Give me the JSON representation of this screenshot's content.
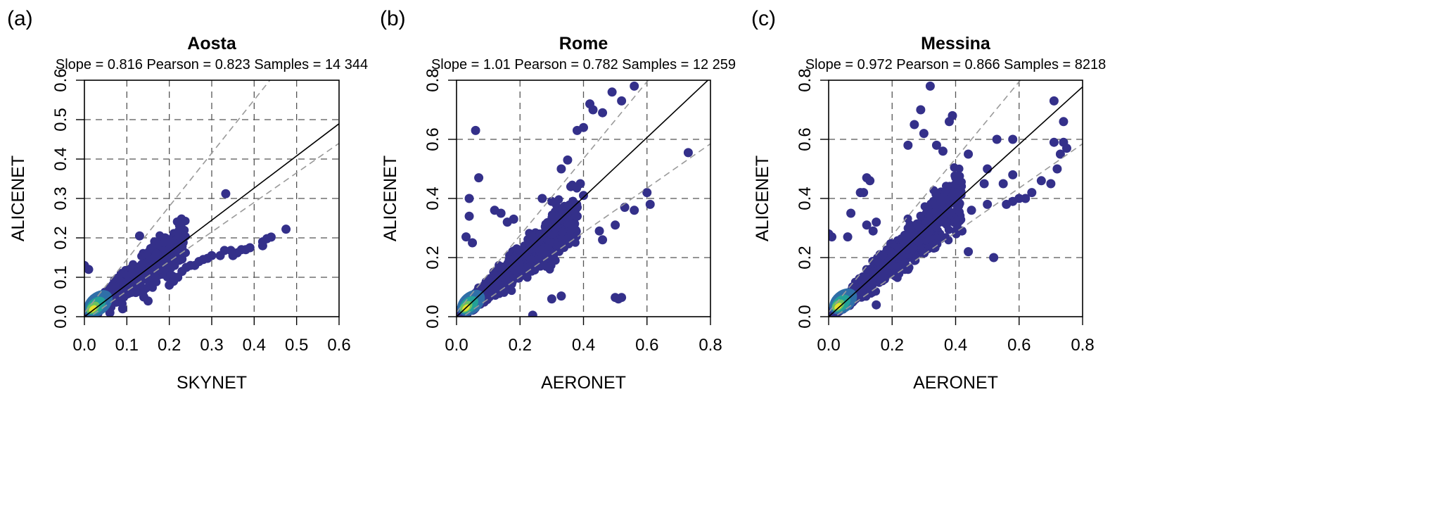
{
  "colors": {
    "point": "#34308a",
    "dense_1": "#2f6fa8",
    "dense_2": "#23a198",
    "dense_3": "#6cc160",
    "dense_4": "#e5e02c",
    "grid": "#555555",
    "guide": "#9a9a9a",
    "fit": "#000000"
  },
  "chart_data": [
    {
      "type": "scatter",
      "panel_label": "(a)",
      "title": "Aosta",
      "subtitle": "Slope = 0.816   Pearson = 0.823   Samples = 14 344",
      "stats": {
        "slope": 0.816,
        "pearson": 0.823,
        "samples": 14344
      },
      "xlabel": "SKYNET",
      "ylabel": "ALICENET",
      "xlim": [
        0,
        0.6
      ],
      "ylim": [
        0,
        0.6
      ],
      "xticks": [
        "0.0",
        "0.1",
        "0.2",
        "0.3",
        "0.4",
        "0.5",
        "0.6"
      ],
      "yticks": [
        "0.0",
        "0.1",
        "0.2",
        "0.3",
        "0.4",
        "0.5",
        "0.6"
      ],
      "grid": true,
      "fit_line": {
        "slope": 0.816,
        "intercept": 0
      },
      "guide_lines": [
        {
          "slope": 1.35,
          "intercept": 0.01
        },
        {
          "slope": 0.75,
          "intercept": -0.01
        }
      ],
      "outliers": [
        [
          0.333,
          0.312
        ],
        [
          0.475,
          0.222
        ],
        [
          0.44,
          0.202
        ],
        [
          0.43,
          0.198
        ],
        [
          0.42,
          0.19
        ],
        [
          0.42,
          0.18
        ],
        [
          0.39,
          0.175
        ],
        [
          0.38,
          0.17
        ],
        [
          0.37,
          0.17
        ],
        [
          0.36,
          0.162
        ],
        [
          0.35,
          0.155
        ],
        [
          0.345,
          0.168
        ],
        [
          0.33,
          0.168
        ],
        [
          0.32,
          0.155
        ],
        [
          0.3,
          0.155
        ],
        [
          0.29,
          0.148
        ],
        [
          0.28,
          0.145
        ],
        [
          0.27,
          0.14
        ],
        [
          0.26,
          0.13
        ],
        [
          0.25,
          0.13
        ],
        [
          0.24,
          0.125
        ],
        [
          0.23,
          0.115
        ],
        [
          0.22,
          0.1
        ],
        [
          0.21,
          0.09
        ],
        [
          0.2,
          0.08
        ],
        [
          0.13,
          0.205
        ],
        [
          0.19,
          0.2
        ],
        [
          0.2,
          0.19
        ],
        [
          0.2,
          0.17
        ],
        [
          0.0,
          0.13
        ],
        [
          0.01,
          0.12
        ],
        [
          0.16,
          0.175
        ],
        [
          0.17,
          0.16
        ],
        [
          0.14,
          0.05
        ],
        [
          0.15,
          0.04
        ],
        [
          0.06,
          0.01
        ],
        [
          0.09,
          0.02
        ]
      ],
      "cloud": {
        "x_max": 0.24,
        "slope": 0.82,
        "spread": 0.045,
        "n": 900
      },
      "core": {
        "center": [
          0.02,
          0.02
        ],
        "radius": 0.035
      }
    },
    {
      "type": "scatter",
      "panel_label": "(b)",
      "title": "Rome",
      "subtitle": "Slope = 1.01   Pearson = 0.782   Samples = 12 259",
      "stats": {
        "slope": 1.01,
        "pearson": 0.782,
        "samples": 12259
      },
      "xlabel": "AERONET",
      "ylabel": "ALICENET",
      "xlim": [
        0,
        0.8
      ],
      "ylim": [
        0,
        0.8
      ],
      "xticks": [
        "0.0",
        "0.2",
        "0.4",
        "0.6",
        "0.8"
      ],
      "yticks": [
        "0.0",
        "0.2",
        "0.4",
        "0.6",
        "0.8"
      ],
      "grid": true,
      "fit_line": {
        "slope": 1.01,
        "intercept": 0
      },
      "guide_lines": [
        {
          "slope": 1.3,
          "intercept": 0.015
        },
        {
          "slope": 0.75,
          "intercept": -0.015
        }
      ],
      "outliers": [
        [
          0.56,
          0.78
        ],
        [
          0.49,
          0.76
        ],
        [
          0.52,
          0.73
        ],
        [
          0.42,
          0.72
        ],
        [
          0.43,
          0.7
        ],
        [
          0.46,
          0.69
        ],
        [
          0.06,
          0.63
        ],
        [
          0.38,
          0.63
        ],
        [
          0.4,
          0.64
        ],
        [
          0.73,
          0.555
        ],
        [
          0.35,
          0.53
        ],
        [
          0.33,
          0.5
        ],
        [
          0.07,
          0.47
        ],
        [
          0.04,
          0.4
        ],
        [
          0.27,
          0.4
        ],
        [
          0.3,
          0.39
        ],
        [
          0.38,
          0.34
        ],
        [
          0.6,
          0.42
        ],
        [
          0.61,
          0.38
        ],
        [
          0.53,
          0.37
        ],
        [
          0.56,
          0.36
        ],
        [
          0.5,
          0.31
        ],
        [
          0.45,
          0.29
        ],
        [
          0.46,
          0.26
        ],
        [
          0.5,
          0.065
        ],
        [
          0.51,
          0.06
        ],
        [
          0.52,
          0.065
        ],
        [
          0.24,
          0.005
        ],
        [
          0.16,
          0.32
        ],
        [
          0.18,
          0.33
        ],
        [
          0.04,
          0.34
        ],
        [
          0.12,
          0.36
        ],
        [
          0.14,
          0.35
        ],
        [
          0.31,
          0.3
        ],
        [
          0.32,
          0.33
        ],
        [
          0.35,
          0.35
        ],
        [
          0.37,
          0.36
        ],
        [
          0.38,
          0.37
        ],
        [
          0.4,
          0.41
        ],
        [
          0.36,
          0.44
        ],
        [
          0.39,
          0.45
        ],
        [
          0.05,
          0.25
        ],
        [
          0.03,
          0.27
        ],
        [
          0.3,
          0.06
        ],
        [
          0.33,
          0.07
        ]
      ],
      "cloud": {
        "x_max": 0.38,
        "slope": 0.9,
        "spread": 0.05,
        "n": 1100
      },
      "core": {
        "center": [
          0.03,
          0.03
        ],
        "radius": 0.045
      }
    },
    {
      "type": "scatter",
      "panel_label": "(c)",
      "title": "Messina",
      "subtitle": "Slope = 0.972   Pearson = 0.866   Samples = 8218",
      "stats": {
        "slope": 0.972,
        "pearson": 0.866,
        "samples": 8218
      },
      "xlabel": "AERONET",
      "ylabel": "ALICENET",
      "xlim": [
        0,
        0.8
      ],
      "ylim": [
        0,
        0.8
      ],
      "xticks": [
        "0.0",
        "0.2",
        "0.4",
        "0.6",
        "0.8"
      ],
      "yticks": [
        "0.0",
        "0.2",
        "0.4",
        "0.6",
        "0.8"
      ],
      "grid": true,
      "fit_line": {
        "slope": 0.972,
        "intercept": 0
      },
      "guide_lines": [
        {
          "slope": 1.3,
          "intercept": 0.015
        },
        {
          "slope": 0.75,
          "intercept": -0.015
        }
      ],
      "outliers": [
        [
          0.32,
          0.78
        ],
        [
          0.29,
          0.7
        ],
        [
          0.39,
          0.68
        ],
        [
          0.71,
          0.73
        ],
        [
          0.74,
          0.66
        ],
        [
          0.38,
          0.66
        ],
        [
          0.27,
          0.65
        ],
        [
          0.3,
          0.62
        ],
        [
          0.25,
          0.58
        ],
        [
          0.34,
          0.58
        ],
        [
          0.36,
          0.56
        ],
        [
          0.53,
          0.6
        ],
        [
          0.58,
          0.6
        ],
        [
          0.44,
          0.55
        ],
        [
          0.5,
          0.5
        ],
        [
          0.49,
          0.45
        ],
        [
          0.58,
          0.48
        ],
        [
          0.55,
          0.45
        ],
        [
          0.67,
          0.46
        ],
        [
          0.7,
          0.45
        ],
        [
          0.72,
          0.5
        ],
        [
          0.73,
          0.55
        ],
        [
          0.75,
          0.57
        ],
        [
          0.74,
          0.59
        ],
        [
          0.71,
          0.59
        ],
        [
          0.64,
          0.42
        ],
        [
          0.62,
          0.4
        ],
        [
          0.6,
          0.4
        ],
        [
          0.56,
          0.38
        ],
        [
          0.58,
          0.39
        ],
        [
          0.52,
          0.2
        ],
        [
          0.42,
          0.29
        ],
        [
          0.44,
          0.22
        ],
        [
          0.24,
          0.16
        ],
        [
          0.25,
          0.16
        ],
        [
          0.15,
          0.04
        ],
        [
          0.0,
          0.28
        ],
        [
          0.01,
          0.27
        ],
        [
          0.06,
          0.27
        ],
        [
          0.12,
          0.47
        ],
        [
          0.13,
          0.46
        ],
        [
          0.1,
          0.42
        ],
        [
          0.11,
          0.42
        ],
        [
          0.12,
          0.31
        ],
        [
          0.14,
          0.29
        ],
        [
          0.07,
          0.35
        ],
        [
          0.15,
          0.32
        ],
        [
          0.38,
          0.35
        ],
        [
          0.45,
          0.36
        ],
        [
          0.5,
          0.38
        ]
      ],
      "cloud": {
        "x_max": 0.42,
        "slope": 0.97,
        "spread": 0.045,
        "n": 1100
      },
      "core": {
        "center": [
          0.03,
          0.035
        ],
        "radius": 0.045
      }
    }
  ]
}
